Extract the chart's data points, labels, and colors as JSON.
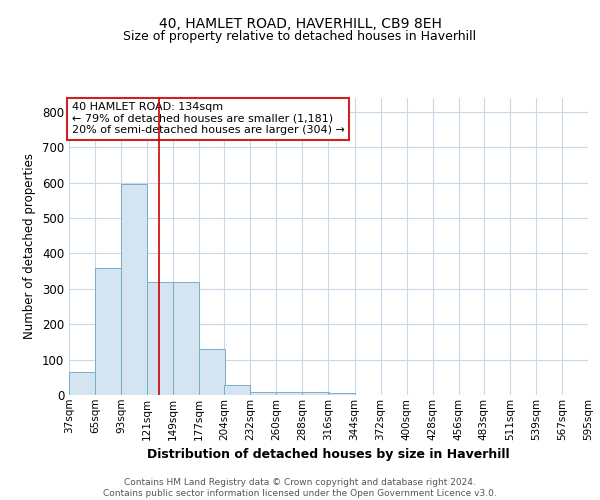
{
  "title1": "40, HAMLET ROAD, HAVERHILL, CB9 8EH",
  "title2": "Size of property relative to detached houses in Haverhill",
  "xlabel": "Distribution of detached houses by size in Haverhill",
  "ylabel": "Number of detached properties",
  "bin_labels": [
    "37sqm",
    "65sqm",
    "93sqm",
    "121sqm",
    "149sqm",
    "177sqm",
    "204sqm",
    "232sqm",
    "260sqm",
    "288sqm",
    "316sqm",
    "344sqm",
    "372sqm",
    "400sqm",
    "428sqm",
    "456sqm",
    "483sqm",
    "511sqm",
    "539sqm",
    "567sqm",
    "595sqm"
  ],
  "bin_edges": [
    37,
    65,
    93,
    121,
    149,
    177,
    204,
    232,
    260,
    288,
    316,
    344,
    372,
    400,
    428,
    456,
    483,
    511,
    539,
    567,
    595
  ],
  "bar_heights": [
    65,
    358,
    595,
    320,
    318,
    130,
    28,
    8,
    8,
    8,
    5,
    0,
    0,
    0,
    0,
    0,
    0,
    0,
    0,
    0
  ],
  "bar_color": "#d4e4f0",
  "bar_edge_color": "#7aaccc",
  "vline_x": 134,
  "vline_color": "#cc0000",
  "annotation_text": "40 HAMLET ROAD: 134sqm\n← 79% of detached houses are smaller (1,181)\n20% of semi-detached houses are larger (304) →",
  "annotation_box_color": "#ffffff",
  "annotation_box_edge": "#cc2222",
  "ylim": [
    0,
    840
  ],
  "yticks": [
    0,
    100,
    200,
    300,
    400,
    500,
    600,
    700,
    800
  ],
  "footer": "Contains HM Land Registry data © Crown copyright and database right 2024.\nContains public sector information licensed under the Open Government Licence v3.0.",
  "bg_color": "#ffffff",
  "grid_color": "#c8d8e8"
}
